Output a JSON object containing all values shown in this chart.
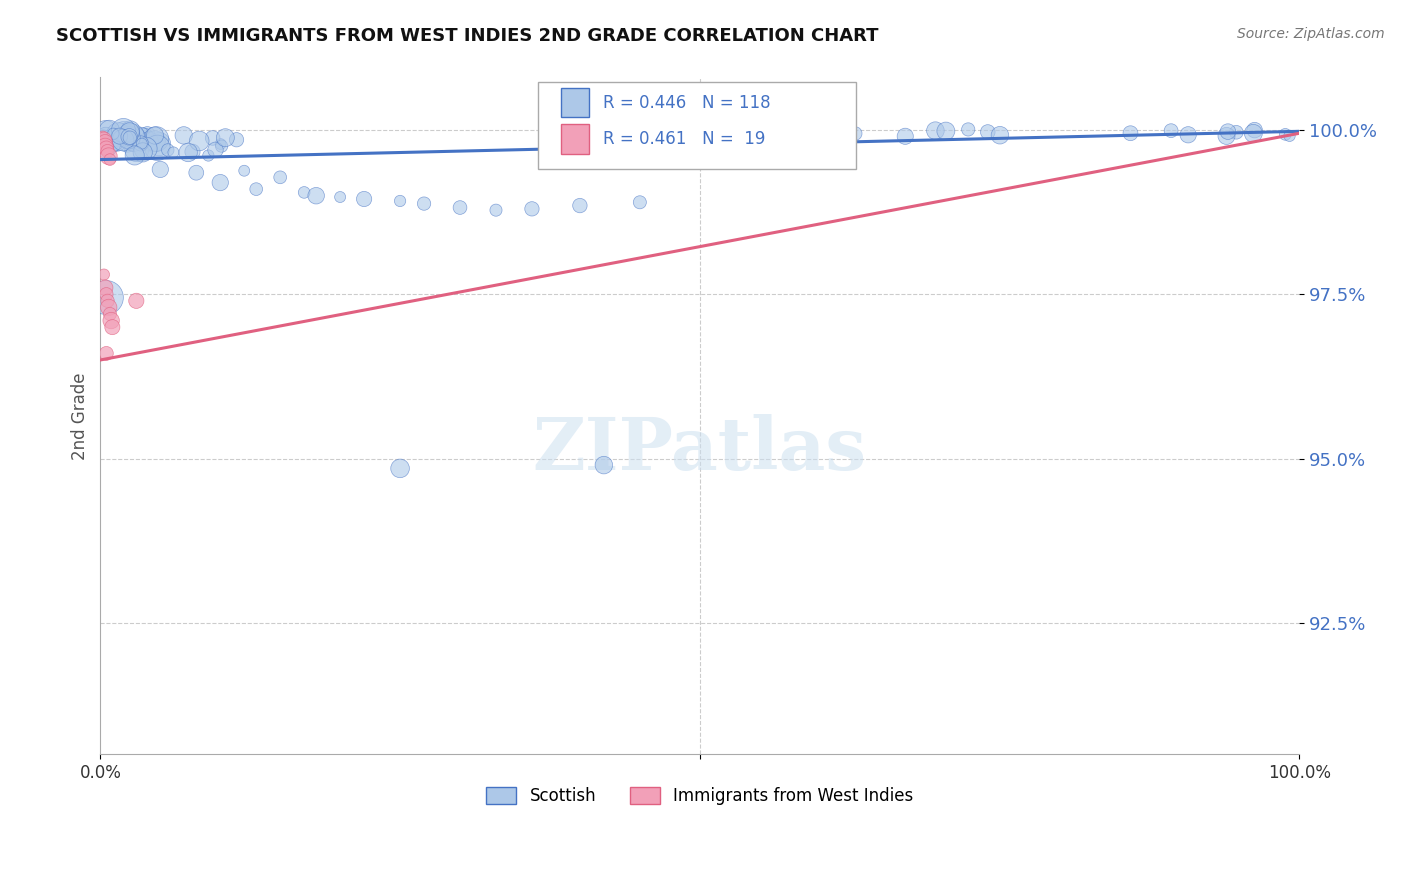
{
  "title": "SCOTTISH VS IMMIGRANTS FROM WEST INDIES 2ND GRADE CORRELATION CHART",
  "source": "Source: ZipAtlas.com",
  "ylabel": "2nd Grade",
  "legend_blue_label": "Scottish",
  "legend_pink_label": "Immigrants from West Indies",
  "r_blue": 0.446,
  "n_blue": 118,
  "r_pink": 0.461,
  "n_pink": 19,
  "blue_color": "#adc8e8",
  "blue_line_color": "#4472c4",
  "pink_color": "#f2a0b8",
  "pink_line_color": "#e06080",
  "y_ticks": [
    0.925,
    0.95,
    0.975,
    1.0
  ],
  "y_tick_labels": [
    "92.5%",
    "95.0%",
    "97.5%",
    "100.0%"
  ],
  "ylim": [
    0.905,
    1.008
  ],
  "xlim": [
    0.0,
    1.0
  ],
  "blue_line_x0": 0.0,
  "blue_line_y0": 0.9955,
  "blue_line_x1": 1.0,
  "blue_line_y1": 0.9998,
  "pink_line_x0": 0.0,
  "pink_line_y0": 0.965,
  "pink_line_x1": 1.0,
  "pink_line_y1": 0.9995,
  "watermark_text": "ZIPatlas",
  "background_color": "#ffffff",
  "grid_color": "#cccccc"
}
